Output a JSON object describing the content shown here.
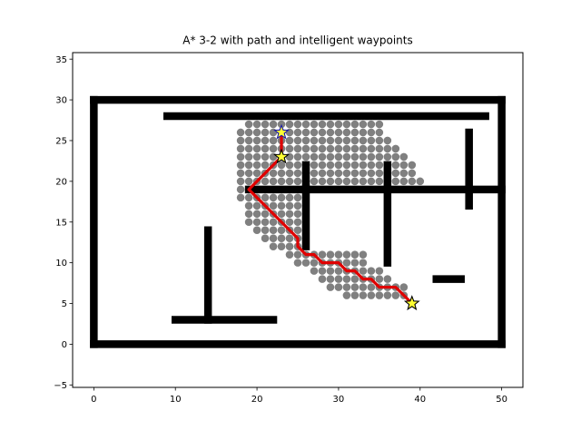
{
  "chart_data": {
    "type": "scatter",
    "title": "A* 3-2 with path and intelligent waypoints",
    "xlabel": "",
    "ylabel": "",
    "xlim": [
      -2.6,
      52.6
    ],
    "ylim": [
      -5.3,
      35.8
    ],
    "xticks": [
      0,
      10,
      20,
      30,
      40,
      50
    ],
    "yticks": [
      -5,
      0,
      5,
      10,
      15,
      20,
      25,
      30,
      35
    ],
    "grid": false,
    "legend": "none",
    "colors": {
      "obstacles": "#000000",
      "explored": "#808080",
      "path": "#e00000",
      "waypoint_fill": "#ffff33",
      "waypoint_edge": "#000000",
      "start_edge": "#1a1aa8"
    },
    "obstacles": [
      {
        "x1": 0,
        "y1": 0,
        "x2": 50,
        "y2": 0
      },
      {
        "x1": 0,
        "y1": 30,
        "x2": 50,
        "y2": 30
      },
      {
        "x1": 0,
        "y1": 0,
        "x2": 0,
        "y2": 30
      },
      {
        "x1": 50,
        "y1": 0,
        "x2": 50,
        "y2": 30
      },
      {
        "x1": 9,
        "y1": 28,
        "x2": 48,
        "y2": 28
      },
      {
        "x1": 19,
        "y1": 19,
        "x2": 50,
        "y2": 19
      },
      {
        "x1": 26,
        "y1": 12,
        "x2": 26,
        "y2": 22
      },
      {
        "x1": 36,
        "y1": 10,
        "x2": 36,
        "y2": 22
      },
      {
        "x1": 46,
        "y1": 17,
        "x2": 46,
        "y2": 26
      },
      {
        "x1": 14,
        "y1": 3,
        "x2": 14,
        "y2": 14
      },
      {
        "x1": 10,
        "y1": 3,
        "x2": 22,
        "y2": 3
      },
      {
        "x1": 42,
        "y1": 8,
        "x2": 45,
        "y2": 8
      }
    ],
    "explored_rows": [
      {
        "y": 27,
        "x": [
          19,
          35
        ]
      },
      {
        "y": 26,
        "x": [
          18,
          35
        ]
      },
      {
        "y": 25,
        "x": [
          18,
          36
        ]
      },
      {
        "y": 24,
        "x": [
          18,
          37
        ]
      },
      {
        "y": 23,
        "x": [
          18,
          38
        ]
      },
      {
        "y": 22,
        "x": [
          18,
          39
        ]
      },
      {
        "y": 21,
        "x": [
          18,
          39
        ]
      },
      {
        "y": 20,
        "x": [
          18,
          40
        ]
      },
      {
        "y": 19,
        "x": [
          18,
          19
        ]
      },
      {
        "y": 18,
        "x": [
          18,
          25
        ]
      },
      {
        "y": 17,
        "x": [
          19,
          25
        ]
      },
      {
        "y": 16,
        "x": [
          19,
          25
        ]
      },
      {
        "y": 15,
        "x": [
          19,
          25
        ]
      },
      {
        "y": 14,
        "x": [
          20,
          25
        ]
      },
      {
        "y": 13,
        "x": [
          21,
          25
        ]
      },
      {
        "y": 12,
        "x": [
          22,
          25
        ]
      },
      {
        "y": 11,
        "x": [
          24,
          33
        ]
      },
      {
        "y": 10,
        "x": [
          25,
          33
        ]
      },
      {
        "y": 9,
        "x": [
          27,
          35
        ]
      },
      {
        "y": 8,
        "x": [
          28,
          36
        ]
      },
      {
        "y": 7,
        "x": [
          29,
          38
        ]
      },
      {
        "y": 6,
        "x": [
          31,
          38
        ]
      }
    ],
    "path": [
      [
        23,
        26
      ],
      [
        23,
        23
      ],
      [
        22,
        22
      ],
      [
        21,
        21
      ],
      [
        20,
        20
      ],
      [
        19,
        19
      ],
      [
        20,
        18
      ],
      [
        21,
        17
      ],
      [
        22,
        16
      ],
      [
        23,
        15
      ],
      [
        24,
        14
      ],
      [
        25,
        13
      ],
      [
        25,
        12
      ],
      [
        26,
        11
      ],
      [
        27,
        11
      ],
      [
        28,
        10
      ],
      [
        30,
        10
      ],
      [
        31,
        9
      ],
      [
        32,
        9
      ],
      [
        33,
        8
      ],
      [
        34,
        8
      ],
      [
        35,
        7
      ],
      [
        37,
        7
      ],
      [
        38,
        6
      ],
      [
        39,
        5
      ]
    ],
    "waypoints": [
      {
        "x": 23,
        "y": 26,
        "role": "start"
      },
      {
        "x": 23,
        "y": 23,
        "role": "waypoint"
      },
      {
        "x": 39,
        "y": 5,
        "role": "goal"
      }
    ]
  }
}
